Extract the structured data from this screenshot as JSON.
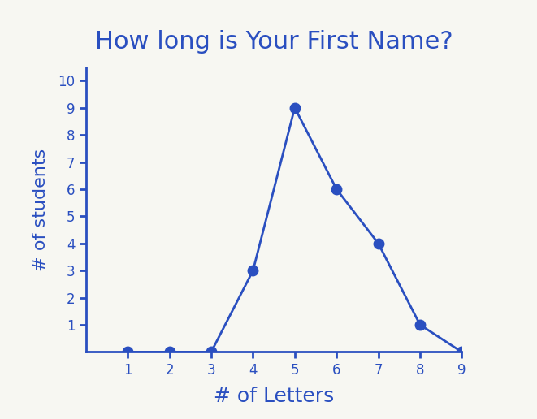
{
  "chart_data": {
    "type": "line",
    "title": "How long is Your First Name?",
    "x_label": "# of Letters",
    "y_label": "# of students",
    "x": [
      1,
      2,
      3,
      4,
      5,
      6,
      7,
      8,
      9
    ],
    "values": [
      0,
      0,
      0,
      3,
      9,
      6,
      4,
      1,
      0
    ],
    "color": "#2a4fc0",
    "marker": "o",
    "line_style": "solid",
    "xlim": [
      0,
      9
    ],
    "xticks": [
      1,
      2,
      3,
      4,
      5,
      6,
      7,
      8,
      9
    ],
    "ylim": [
      0,
      10.5
    ],
    "yticks": [
      1,
      2,
      3,
      4,
      5,
      6,
      7,
      8,
      9,
      10
    ],
    "grid": false
  }
}
